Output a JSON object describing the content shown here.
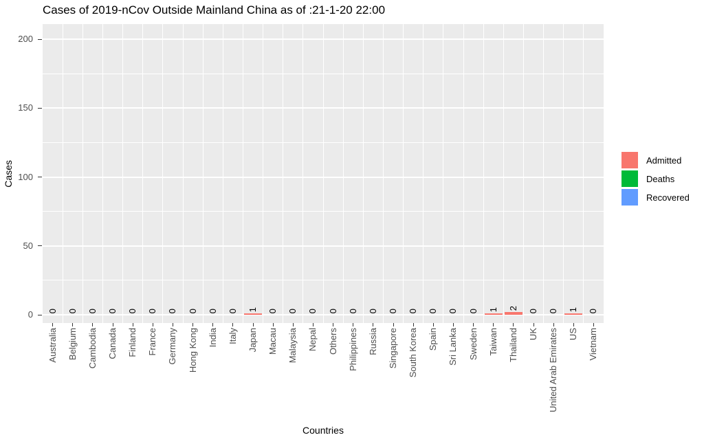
{
  "chart_data": {
    "type": "bar",
    "title": "Cases of 2019-nCov Outside Mainland China as of :21-1-20 22:00",
    "xlabel": "Countries",
    "ylabel": "Cases",
    "ylim": [
      0,
      200
    ],
    "yticks": [
      0,
      50,
      100,
      150,
      200
    ],
    "yticks_minor": [
      25,
      75,
      125,
      175
    ],
    "grid": true,
    "panel_bg": "#EBEBEB",
    "grid_color": "#FFFFFF",
    "legend_position": "right",
    "categories": [
      "Australia",
      "Belgium",
      "Cambodia",
      "Canada",
      "Finland",
      "France",
      "Germany",
      "Hong Kong",
      "India",
      "Italy",
      "Japan",
      "Macau",
      "Malaysia",
      "Nepal",
      "Others",
      "Philippines",
      "Russia",
      "Singapore",
      "South Korea",
      "Spain",
      "Sri Lanka",
      "Sweden",
      "Taiwan",
      "Thailand",
      "UK",
      "United Arab Emirates",
      "US",
      "Vietnam"
    ],
    "series": [
      {
        "name": "Admitted",
        "color": "#F8766D",
        "values": [
          0,
          0,
          0,
          0,
          0,
          0,
          0,
          0,
          0,
          0,
          1,
          0,
          0,
          0,
          0,
          0,
          0,
          0,
          0,
          0,
          0,
          0,
          1,
          2,
          0,
          0,
          1,
          0
        ]
      },
      {
        "name": "Deaths",
        "color": "#00BA38",
        "values": [
          0,
          0,
          0,
          0,
          0,
          0,
          0,
          0,
          0,
          0,
          0,
          0,
          0,
          0,
          0,
          0,
          0,
          0,
          0,
          0,
          0,
          0,
          0,
          0,
          0,
          0,
          0,
          0
        ]
      },
      {
        "name": "Recovered",
        "color": "#619CFF",
        "values": [
          0,
          0,
          0,
          0,
          0,
          0,
          0,
          0,
          0,
          0,
          0,
          0,
          0,
          0,
          0,
          0,
          0,
          0,
          0,
          0,
          0,
          0,
          0,
          0,
          0,
          0,
          0,
          0
        ]
      }
    ],
    "bar_labels": [
      "0",
      "0",
      "0",
      "0",
      "0",
      "0",
      "0",
      "0",
      "0",
      "0",
      "1",
      "0",
      "0",
      "0",
      "0",
      "0",
      "0",
      "0",
      "0",
      "0",
      "0",
      "0",
      "1",
      "2",
      "0",
      "0",
      "1",
      "0"
    ]
  }
}
